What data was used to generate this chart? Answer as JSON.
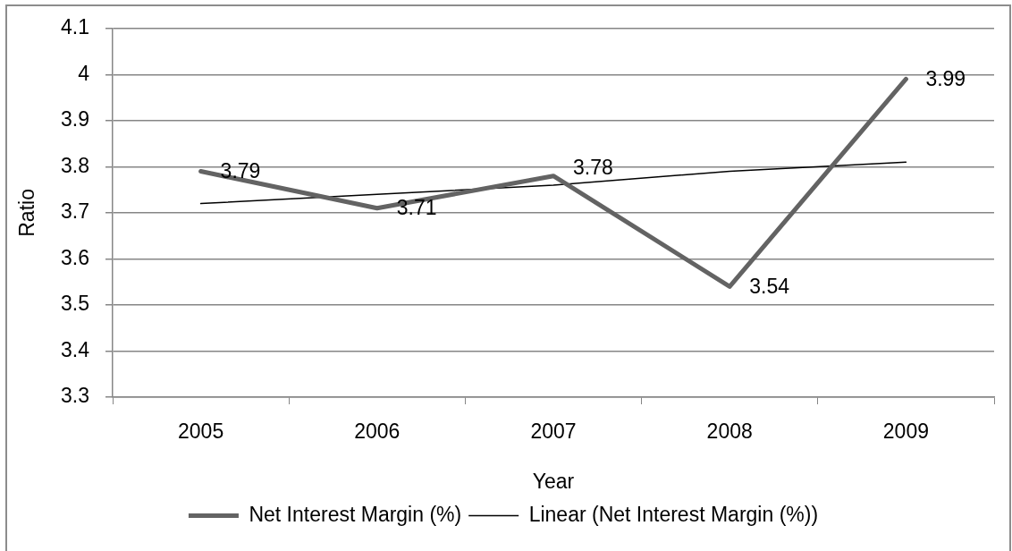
{
  "chart_data": {
    "type": "line",
    "xlabel": "Year",
    "ylabel": "Ratio",
    "categories": [
      "2005",
      "2006",
      "2007",
      "2008",
      "2009"
    ],
    "ylim": [
      3.3,
      4.1
    ],
    "yticks": [
      3.3,
      3.4,
      3.5,
      3.6,
      3.7,
      3.8,
      3.9,
      4,
      4.1
    ],
    "grid": "y",
    "legend": "bottom",
    "marker": "none",
    "series": [
      {
        "name": "Net Interest Margin (%)",
        "color": "#636363",
        "values": [
          3.79,
          3.71,
          3.78,
          3.54,
          3.99
        ],
        "value_labels": [
          "3.79",
          "3.71",
          "3.78",
          "3.54",
          "3.99"
        ]
      },
      {
        "name": "Linear (Net Interest Margin (%))",
        "type": "line",
        "color": "#000000",
        "values": [
          3.72,
          3.74,
          3.76,
          3.79,
          3.81
        ]
      }
    ]
  }
}
